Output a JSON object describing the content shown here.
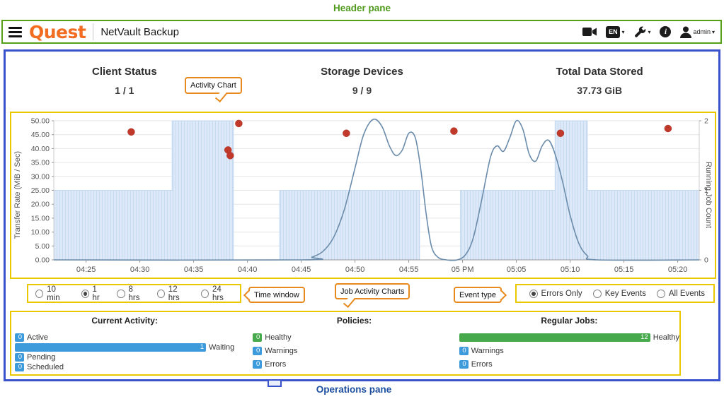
{
  "annotations": {
    "header_pane": "Header pane",
    "operations_pane": "Operations pane",
    "activity_chart": "Activity Chart",
    "time_window": "Time window",
    "job_activity_charts": "Job Activity Charts",
    "event_type": "Event type"
  },
  "annotation_colors": {
    "header_border": "#56a018",
    "dashboard_border": "#3952cc",
    "highlight_border": "#eac800",
    "callout_border": "#e8891d",
    "header_label": "#4f9a1c",
    "operations_label": "#1d4fa1"
  },
  "header": {
    "logo_text": "Quest",
    "product_title": "NetVault Backup",
    "language_badge": "EN",
    "info_glyph": "i",
    "user_label": "admin",
    "caret": "▾"
  },
  "stats": {
    "client_status": {
      "label": "Client Status",
      "value": "1 / 1"
    },
    "storage_devices": {
      "label": "Storage Devices",
      "value": "9 / 9"
    },
    "total_data": {
      "label": "Total Data Stored",
      "value": "37.73 GiB"
    }
  },
  "chart_data": {
    "type": "line",
    "x_domain_minutes": [
      22,
      82
    ],
    "x_ticks": {
      "minutes": [
        25,
        30,
        35,
        40,
        45,
        50,
        55,
        60,
        65,
        70,
        75,
        80
      ],
      "labels": [
        "04:25",
        "04:30",
        "04:35",
        "04:40",
        "04:45",
        "04:50",
        "04:55",
        "05 PM",
        "05:05",
        "05:10",
        "05:15",
        "05:20"
      ]
    },
    "y_left": {
      "label": "Transfer Rate (MiB / Sec)",
      "min": 0,
      "max": 50,
      "ticks": [
        0,
        5,
        10,
        15,
        20,
        25,
        30,
        35,
        40,
        45,
        50
      ],
      "tick_labels": [
        "0.00",
        "5.00",
        "10.00",
        "15.00",
        "20.00",
        "25.00",
        "30.00",
        "35.00",
        "40.00",
        "45.00",
        "50.00"
      ]
    },
    "y_right": {
      "label": "Running Job Count",
      "min": 0,
      "max": 2,
      "ticks": [
        0,
        1,
        2
      ],
      "tick_labels": [
        "0",
        "1",
        "2"
      ]
    },
    "running_jobs_steps": [
      [
        22,
        33,
        1
      ],
      [
        33,
        38.7,
        2
      ],
      [
        38.7,
        43,
        0
      ],
      [
        43,
        56,
        1
      ],
      [
        56,
        59.8,
        0
      ],
      [
        59.8,
        68.6,
        1
      ],
      [
        68.6,
        71.6,
        2
      ],
      [
        71.6,
        82,
        1
      ]
    ],
    "transfer_rate_points": [
      [
        22,
        0
      ],
      [
        45,
        0
      ],
      [
        46,
        1
      ],
      [
        47,
        3
      ],
      [
        48,
        8
      ],
      [
        49,
        18
      ],
      [
        50,
        33
      ],
      [
        50.8,
        45
      ],
      [
        51.7,
        50.5
      ],
      [
        52.5,
        48
      ],
      [
        53.2,
        41
      ],
      [
        53.8,
        37.5
      ],
      [
        54.4,
        39.5
      ],
      [
        55,
        45.5
      ],
      [
        55.6,
        44
      ],
      [
        56.1,
        33
      ],
      [
        56.6,
        17
      ],
      [
        57.1,
        5
      ],
      [
        57.7,
        1
      ],
      [
        58.5,
        0
      ],
      [
        59.5,
        0
      ],
      [
        60.3,
        2
      ],
      [
        61,
        8
      ],
      [
        61.8,
        22
      ],
      [
        62.6,
        37
      ],
      [
        63.2,
        41
      ],
      [
        63.8,
        39
      ],
      [
        64.4,
        44
      ],
      [
        65,
        50
      ],
      [
        65.6,
        47
      ],
      [
        66.2,
        38
      ],
      [
        66.8,
        35.5
      ],
      [
        67.4,
        41
      ],
      [
        68,
        43
      ],
      [
        68.6,
        38
      ],
      [
        69.3,
        28
      ],
      [
        70,
        16
      ],
      [
        70.8,
        6
      ],
      [
        71.6,
        1.5
      ],
      [
        72.5,
        0
      ],
      [
        82,
        0
      ]
    ],
    "error_events": [
      [
        29.2,
        46
      ],
      [
        38.2,
        39.5
      ],
      [
        38.4,
        37.5
      ],
      [
        39.2,
        49
      ],
      [
        49.2,
        45.5
      ],
      [
        59.2,
        46.3
      ],
      [
        69.1,
        45.5
      ],
      [
        79.1,
        47.2
      ]
    ],
    "colors": {
      "line": "#6b8cab",
      "area_fill": "#dde9f8",
      "area_hatch": "#c6daf0",
      "area_edge": "#c2d8ef",
      "event_dot": "#c0392b",
      "grid": "#e6e6e6",
      "axis": "#999999",
      "tick_text": "#555555"
    }
  },
  "time_window": {
    "options": [
      {
        "label": "10 min",
        "selected": false
      },
      {
        "label": "1 hr",
        "selected": true
      },
      {
        "label": "8 hrs",
        "selected": false
      },
      {
        "label": "12 hrs",
        "selected": false
      },
      {
        "label": "24 hrs",
        "selected": false
      }
    ]
  },
  "event_type": {
    "options": [
      {
        "label": "Errors Only",
        "selected": true
      },
      {
        "label": "Key Events",
        "selected": false
      },
      {
        "label": "All Events",
        "selected": false
      }
    ]
  },
  "operations": {
    "palette": {
      "blue": "#3d9bdb",
      "green": "#46a94b"
    },
    "columns": [
      {
        "title": "Current Activity:",
        "rows": [
          {
            "count": "0",
            "label": "Active",
            "color": "blue"
          },
          {
            "count": "1",
            "label": "Waiting",
            "color": "blue"
          },
          {
            "count": "0",
            "label": "Pending",
            "color": "blue"
          },
          {
            "count": "0",
            "label": "Scheduled",
            "color": "blue"
          }
        ]
      },
      {
        "title": "Policies:",
        "rows": [
          {
            "count": "0",
            "label": "Healthy",
            "color": "green"
          },
          {
            "count": "0",
            "label": "Warnings",
            "color": "blue"
          },
          {
            "count": "0",
            "label": "Errors",
            "color": "blue"
          }
        ]
      },
      {
        "title": "Regular Jobs:",
        "rows": [
          {
            "count": "12",
            "label": "Healthy",
            "color": "green"
          },
          {
            "count": "0",
            "label": "Warnings",
            "color": "blue"
          },
          {
            "count": "0",
            "label": "Errors",
            "color": "blue"
          }
        ]
      }
    ]
  }
}
